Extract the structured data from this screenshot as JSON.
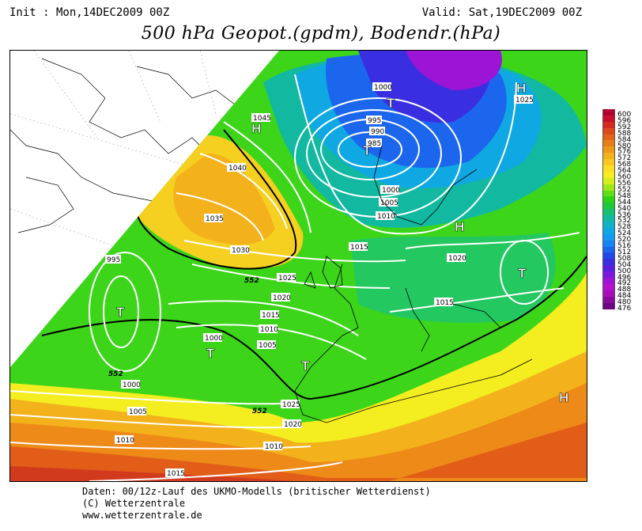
{
  "header": {
    "init": "Init : Mon,14DEC2009 00Z",
    "valid": "Valid: Sat,19DEC2009 00Z",
    "title": "500 hPa Geopot.(gpdm), Bodendr.(hPa)"
  },
  "legend": {
    "values": [
      "600",
      "596",
      "592",
      "588",
      "584",
      "580",
      "576",
      "572",
      "568",
      "564",
      "560",
      "556",
      "552",
      "548",
      "544",
      "540",
      "536",
      "532",
      "528",
      "524",
      "520",
      "516",
      "512",
      "508",
      "504",
      "500",
      "496",
      "492",
      "488",
      "484",
      "480",
      "476"
    ],
    "colors": [
      "#b30030",
      "#c8102e",
      "#d42a1f",
      "#dc4a1a",
      "#e26418",
      "#e87e17",
      "#ee9818",
      "#f3b21c",
      "#f6c820",
      "#f8de24",
      "#f4ee20",
      "#d6ef1a",
      "#9fe817",
      "#5fdf14",
      "#2bd413",
      "#1fc73a",
      "#17c070",
      "#12b9a0",
      "#10b3c6",
      "#10a8e2",
      "#129bf0",
      "#1684f2",
      "#1c66ee",
      "#2448e6",
      "#3a2fe0",
      "#5a1ee0",
      "#7c18dc",
      "#9c14d6",
      "#b412cc",
      "#a80eb8",
      "#8a0a9e",
      "#6c0680"
    ]
  },
  "map_labels": {
    "isobars": [
      "1000",
      "995",
      "990",
      "985",
      "1000",
      "1005",
      "1010",
      "1015",
      "1020",
      "1025",
      "1045",
      "1040",
      "1035",
      "1030",
      "1025",
      "1020",
      "1015",
      "1010",
      "1005",
      "1000",
      "995",
      "1000",
      "1005",
      "1010",
      "1015",
      "1010",
      "1015",
      "1020",
      "1025"
    ],
    "contours": [
      "552",
      "552",
      "552"
    ],
    "pressure_centers": [
      "T",
      "T",
      "T",
      "T",
      "T",
      "T",
      "H",
      "H",
      "H",
      "H"
    ]
  },
  "footer": {
    "line1": "Daten: 00/12z-Lauf des UKMO-Modells (britischer Wetterdienst)",
    "line2": "(C) Wetterzentrale",
    "line3": "www.wetterzentrale.de"
  }
}
